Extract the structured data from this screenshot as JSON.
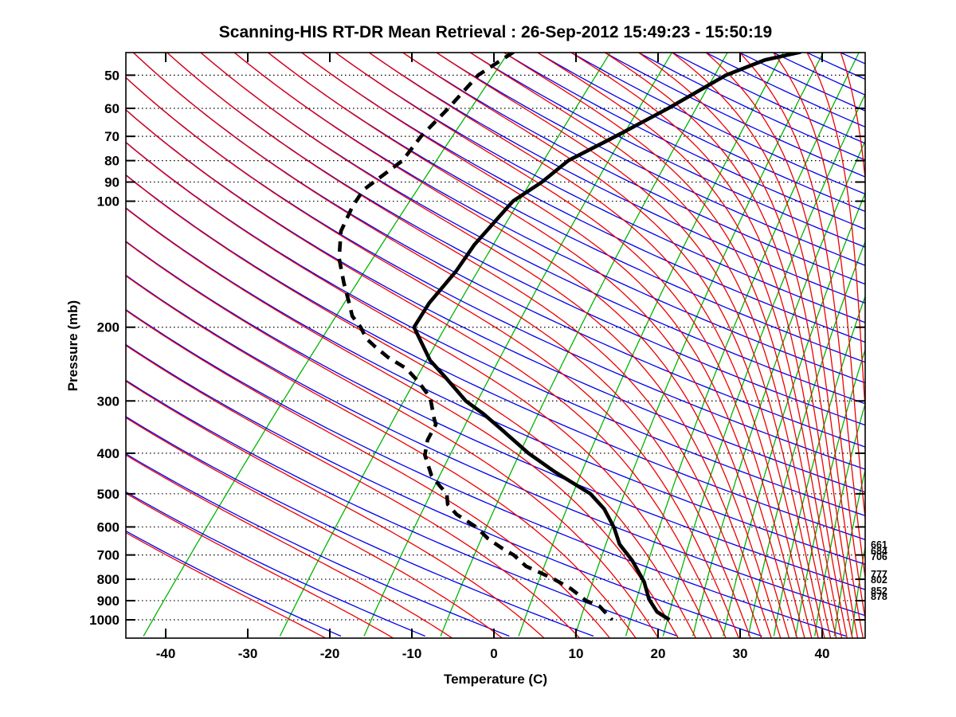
{
  "title": "Scanning-HIS RT-DR Mean Retrieval : 26-Sep-2012 15:49:23 - 15:50:19",
  "axes": {
    "x_label": "Temperature (C)",
    "y_label": "Pressure (mb)",
    "x_ticks_c": [
      -40,
      -30,
      -20,
      -10,
      0,
      10,
      20,
      30,
      40
    ],
    "y_ticks_mb": [
      50,
      60,
      70,
      80,
      90,
      100,
      200,
      300,
      400,
      500,
      600,
      700,
      800,
      900,
      1000
    ],
    "x_range_c_at_surface": [
      -45,
      45
    ],
    "p_range_mb": [
      44,
      1106
    ]
  },
  "right_pressure_labels_mb": [
    661,
    684,
    706,
    777,
    802,
    852,
    878
  ],
  "chart_data": {
    "type": "line",
    "subtype": "skew-t-log-p-sounding",
    "title": "Scanning-HIS RT-DR Mean Retrieval : 26-Sep-2012 15:49:23 - 15:50:19",
    "xlabel": "Temperature (C)",
    "ylabel": "Pressure (mb)",
    "skew_deg": 45,
    "grid": "dotted horizontal isobars",
    "legend": "none",
    "series": [
      {
        "name": "temperature",
        "style": "solid",
        "color": "#000000",
        "points_p_mb_T_c": [
          [
            44,
            -31.8
          ],
          [
            46,
            -35.2
          ],
          [
            50,
            -38.1
          ],
          [
            60,
            -41.1
          ],
          [
            70,
            -44.1
          ],
          [
            80,
            -46.9
          ],
          [
            90,
            -47.5
          ],
          [
            100,
            -48.7
          ],
          [
            127,
            -48.1
          ],
          [
            147,
            -47.1
          ],
          [
            175,
            -46.5
          ],
          [
            200,
            -45.4
          ],
          [
            240,
            -39.4
          ],
          [
            262,
            -35.7
          ],
          [
            300,
            -30.1
          ],
          [
            322,
            -26.4
          ],
          [
            356,
            -21.6
          ],
          [
            400,
            -16.1
          ],
          [
            444,
            -10.5
          ],
          [
            500,
            -3.6
          ],
          [
            543,
            -0.1
          ],
          [
            602,
            3.4
          ],
          [
            660,
            6.1
          ],
          [
            721,
            9.6
          ],
          [
            812,
            13.7
          ],
          [
            893,
            16.4
          ],
          [
            957,
            18.9
          ],
          [
            1000,
            21.4
          ]
        ]
      },
      {
        "name": "dewpoint",
        "style": "dashed",
        "color": "#000000",
        "points_p_mb_T_c": [
          [
            44,
            -66.8
          ],
          [
            50,
            -68.3
          ],
          [
            60,
            -67.9
          ],
          [
            70,
            -67.8
          ],
          [
            80,
            -67.1
          ],
          [
            94,
            -68.3
          ],
          [
            103,
            -67.6
          ],
          [
            118,
            -66.0
          ],
          [
            137,
            -62.9
          ],
          [
            157,
            -59.3
          ],
          [
            176,
            -56.1
          ],
          [
            188,
            -54.3
          ],
          [
            200,
            -51.9
          ],
          [
            213,
            -49.8
          ],
          [
            222,
            -47.9
          ],
          [
            236,
            -44.9
          ],
          [
            251,
            -41.3
          ],
          [
            270,
            -38.2
          ],
          [
            295,
            -34.8
          ],
          [
            332,
            -31.7
          ],
          [
            341,
            -30.9
          ],
          [
            372,
            -30.0
          ],
          [
            404,
            -28.5
          ],
          [
            452,
            -25.2
          ],
          [
            479,
            -22.9
          ],
          [
            500,
            -21.1
          ],
          [
            530,
            -19.7
          ],
          [
            560,
            -17.4
          ],
          [
            600,
            -13.5
          ],
          [
            640,
            -10.6
          ],
          [
            675,
            -7.7
          ],
          [
            700,
            -5.5
          ],
          [
            745,
            -2.6
          ],
          [
            775,
            0.2
          ],
          [
            800,
            2.4
          ],
          [
            843,
            5.6
          ],
          [
            900,
            8.9
          ],
          [
            930,
            11.3
          ],
          [
            1000,
            14.4
          ]
        ]
      }
    ],
    "background_lines": {
      "isobars_mb": [
        50,
        60,
        70,
        80,
        90,
        100,
        200,
        300,
        400,
        500,
        600,
        700,
        800,
        900,
        1000
      ],
      "dry_adiabats_theta_k": {
        "start": 250,
        "end": 600,
        "step": 10
      },
      "moist_adiabats_theta_e_k": {
        "start": 250,
        "end": 600,
        "step": 10
      },
      "mixing_ratio_g_kg": [
        0.1,
        0.5,
        1.2,
        2.5,
        5,
        8,
        12,
        16,
        20,
        25,
        30,
        36,
        42,
        48,
        55,
        62,
        70,
        78,
        87,
        96,
        106,
        117
      ]
    },
    "colors": {
      "dry_adiabat": "#0000ee",
      "moist_adiabat": "#ee0000",
      "mixing_ratio": "#00b400",
      "isobar_grid": "#000000",
      "profiles": "#000000"
    }
  }
}
